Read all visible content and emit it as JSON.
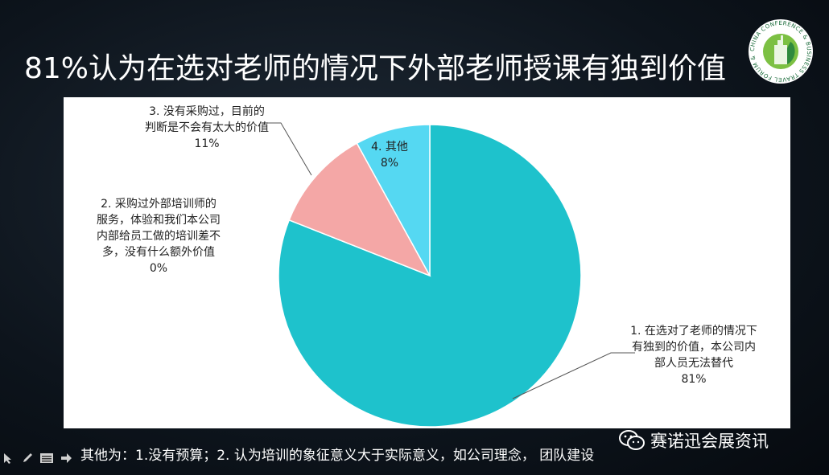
{
  "slide": {
    "title": "81%认为在选对老师的情况下外部老师授课有独到价值",
    "footer_note": "其他为：1.没有预算；2. 认为培训的象征意义大于实际意义，如公司理念， 团队建设"
  },
  "logo": {
    "ring_text": "CHINA CONFERENCE & BUSINESS TRAVEL FORUM & FAIR",
    "icon": "conference-forum-logo"
  },
  "watermark": {
    "text": "赛诺迅会展资讯",
    "icon": "wechat-icon"
  },
  "toolbar": {
    "icons": [
      "pointer-icon",
      "pen-icon",
      "menu-icon",
      "next-arrow-icon"
    ]
  },
  "colors": {
    "slice_1": "#1EC2CC",
    "slice_2": "#F4A7A6",
    "slice_3": "#F4A7A6",
    "slice_4": "#55D8F2"
  },
  "chart_data": {
    "type": "pie",
    "start_angle": "12 o'clock",
    "direction": "clockwise",
    "slices": [
      {
        "label_lines": [
          "1. 在选对了老师的情况下",
          "有独到的价值，本公司内",
          "部人员无法替代"
        ],
        "pct_label": "81%",
        "value": 81
      },
      {
        "label_lines": [
          "2.  采购过外部培训师的",
          "服务，体验和我们本公司",
          "内部给员工做的培训差不",
          "多，没有什么额外价值"
        ],
        "pct_label": "0%",
        "value": 0
      },
      {
        "label_lines": [
          "3.  没有采购过，目前的",
          "判断是不会有太大的价值"
        ],
        "pct_label": "11%",
        "value": 11
      },
      {
        "label_lines": [
          "4.  其他"
        ],
        "pct_label": "8%",
        "value": 8
      }
    ]
  }
}
